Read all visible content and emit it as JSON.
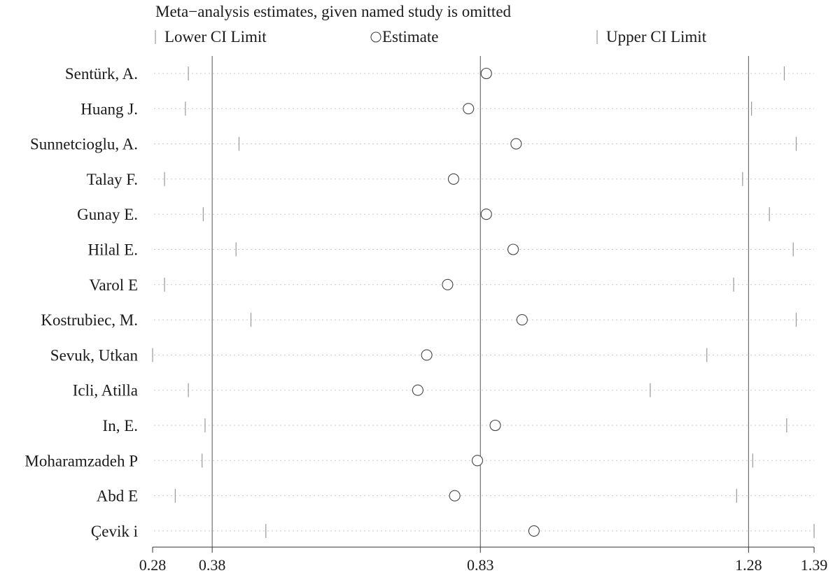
{
  "chart_data": {
    "type": "scatter",
    "title": "Meta−analysis estimates, given named study is omitted",
    "legend": {
      "placement": "top",
      "entries": [
        {
          "marker": "tick",
          "label": "Lower CI Limit"
        },
        {
          "marker": "circle",
          "label": "Estimate"
        },
        {
          "marker": "tick",
          "label": "Upper CI Limit"
        }
      ]
    },
    "xlim": [
      0.28,
      1.39
    ],
    "xticks": [
      0.28,
      0.38,
      0.83,
      1.28,
      1.39
    ],
    "xtick_labels": [
      "0.28",
      "0.38",
      "0.83",
      "1.28",
      "1.39"
    ],
    "reference_lines": [
      0.38,
      0.83,
      1.28
    ],
    "studies": [
      {
        "name": "Sentürk, A.",
        "lower": 0.34,
        "estimate": 0.84,
        "upper": 1.34
      },
      {
        "name": "Huang J.",
        "lower": 0.335,
        "estimate": 0.81,
        "upper": 1.285
      },
      {
        "name": "Sunnetcioglu, A.",
        "lower": 0.425,
        "estimate": 0.89,
        "upper": 1.36
      },
      {
        "name": "Talay F.",
        "lower": 0.3,
        "estimate": 0.785,
        "upper": 1.27
      },
      {
        "name": "Gunay E.",
        "lower": 0.365,
        "estimate": 0.84,
        "upper": 1.315
      },
      {
        "name": "Hilal E.",
        "lower": 0.42,
        "estimate": 0.885,
        "upper": 1.355
      },
      {
        "name": "Varol E",
        "lower": 0.3,
        "estimate": 0.775,
        "upper": 1.255
      },
      {
        "name": "Kostrubiec, M.",
        "lower": 0.445,
        "estimate": 0.9,
        "upper": 1.36
      },
      {
        "name": "Sevuk, Utkan",
        "lower": 0.28,
        "estimate": 0.74,
        "upper": 1.21
      },
      {
        "name": "Icli, Atilla",
        "lower": 0.34,
        "estimate": 0.725,
        "upper": 1.115
      },
      {
        "name": "In, E.",
        "lower": 0.368,
        "estimate": 0.855,
        "upper": 1.344
      },
      {
        "name": "Moharamzadeh P",
        "lower": 0.363,
        "estimate": 0.825,
        "upper": 1.287
      },
      {
        "name": "Abd E",
        "lower": 0.318,
        "estimate": 0.787,
        "upper": 1.26
      },
      {
        "name": "Çevik i",
        "lower": 0.47,
        "estimate": 0.92,
        "upper": 1.39
      }
    ]
  }
}
